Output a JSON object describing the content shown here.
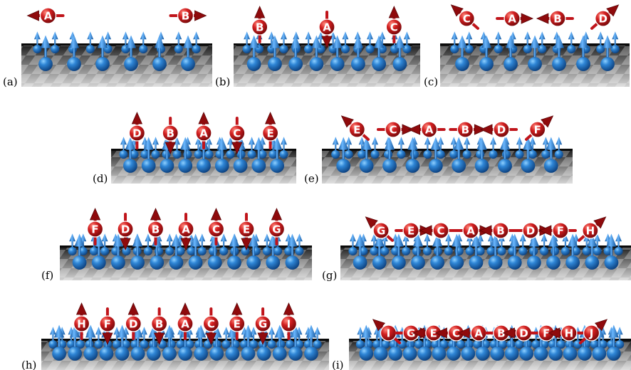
{
  "panels": [
    {
      "label": "(a)",
      "adatoms": [
        {
          "letter": "A",
          "direction": "left"
        },
        {
          "letter": "B",
          "direction": "right"
        }
      ]
    },
    {
      "label": "(b)",
      "adatoms": [
        {
          "letter": "B",
          "direction": "up"
        },
        {
          "letter": "A",
          "direction": "down"
        },
        {
          "letter": "C",
          "direction": "up"
        }
      ]
    },
    {
      "label": "(c)",
      "adatoms": [
        {
          "letter": "C",
          "direction": "up-left"
        },
        {
          "letter": "A",
          "direction": "right"
        },
        {
          "letter": "B",
          "direction": "left"
        },
        {
          "letter": "D",
          "direction": "up-right"
        }
      ]
    },
    {
      "label": "(d)",
      "adatoms": [
        {
          "letter": "D",
          "direction": "up"
        },
        {
          "letter": "B",
          "direction": "down"
        },
        {
          "letter": "A",
          "direction": "up"
        },
        {
          "letter": "C",
          "direction": "down"
        },
        {
          "letter": "E",
          "direction": "up"
        }
      ]
    },
    {
      "label": "(e)",
      "adatoms": [
        {
          "letter": "E",
          "direction": "up-left"
        },
        {
          "letter": "C",
          "direction": "right"
        },
        {
          "letter": "A",
          "direction": "left"
        },
        {
          "letter": "B",
          "direction": "right"
        },
        {
          "letter": "D",
          "direction": "left"
        },
        {
          "letter": "F",
          "direction": "up-right"
        }
      ]
    },
    {
      "label": "(f)",
      "adatoms": [
        {
          "letter": "F",
          "direction": "up"
        },
        {
          "letter": "D",
          "direction": "down"
        },
        {
          "letter": "B",
          "direction": "up"
        },
        {
          "letter": "A",
          "direction": "down"
        },
        {
          "letter": "C",
          "direction": "up"
        },
        {
          "letter": "E",
          "direction": "down"
        },
        {
          "letter": "G",
          "direction": "up"
        }
      ]
    },
    {
      "label": "(g)",
      "adatoms": [
        {
          "letter": "G",
          "direction": "up-left"
        },
        {
          "letter": "E",
          "direction": "right"
        },
        {
          "letter": "C",
          "direction": "left"
        },
        {
          "letter": "A",
          "direction": "right"
        },
        {
          "letter": "B",
          "direction": "left"
        },
        {
          "letter": "D",
          "direction": "right"
        },
        {
          "letter": "F",
          "direction": "left"
        },
        {
          "letter": "H",
          "direction": "up-right"
        }
      ]
    },
    {
      "label": "(h)",
      "adatoms": [
        {
          "letter": "H",
          "direction": "up"
        },
        {
          "letter": "F",
          "direction": "down"
        },
        {
          "letter": "D",
          "direction": "up"
        },
        {
          "letter": "B",
          "direction": "down"
        },
        {
          "letter": "A",
          "direction": "up"
        },
        {
          "letter": "C",
          "direction": "down"
        },
        {
          "letter": "E",
          "direction": "up"
        },
        {
          "letter": "G",
          "direction": "down"
        },
        {
          "letter": "I",
          "direction": "up"
        }
      ]
    },
    {
      "label": "(i)",
      "adatoms": [
        {
          "letter": "I",
          "direction": "up-left"
        },
        {
          "letter": "G",
          "direction": "right"
        },
        {
          "letter": "E",
          "direction": "left"
        },
        {
          "letter": "C",
          "direction": "left"
        },
        {
          "letter": "A",
          "direction": "left"
        },
        {
          "letter": "B",
          "direction": "right"
        },
        {
          "letter": "D",
          "direction": "left"
        },
        {
          "letter": "F",
          "direction": "right"
        },
        {
          "letter": "H",
          "direction": "left"
        },
        {
          "letter": "J",
          "direction": "up-right"
        }
      ]
    }
  ],
  "colors": {
    "adatom": "#c0141a",
    "adatom_highlight": "#ff6a5e",
    "substrate_atom": "#1763b4",
    "substrate_highlight": "#7ec3ff",
    "floor_light": "#d9d9d9",
    "floor_dark": "#555555",
    "background": "#ffffff"
  }
}
